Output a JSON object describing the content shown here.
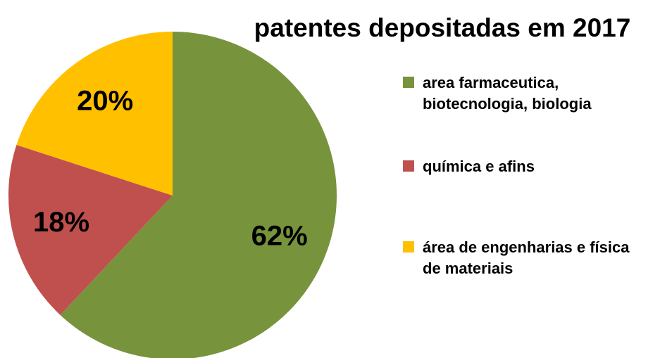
{
  "chart_data": {
    "type": "pie",
    "title": "patentes depositadas em 2017",
    "categories": [
      "area farmaceutica, biotecnologia, biologia",
      "química e afins",
      "área de engenharias e física de materiais"
    ],
    "values": [
      62,
      18,
      20
    ],
    "value_labels": [
      "62%",
      "18%",
      "20%"
    ],
    "colors": [
      "#77933c",
      "#c0504d",
      "#ffc000"
    ],
    "legend": "right"
  }
}
